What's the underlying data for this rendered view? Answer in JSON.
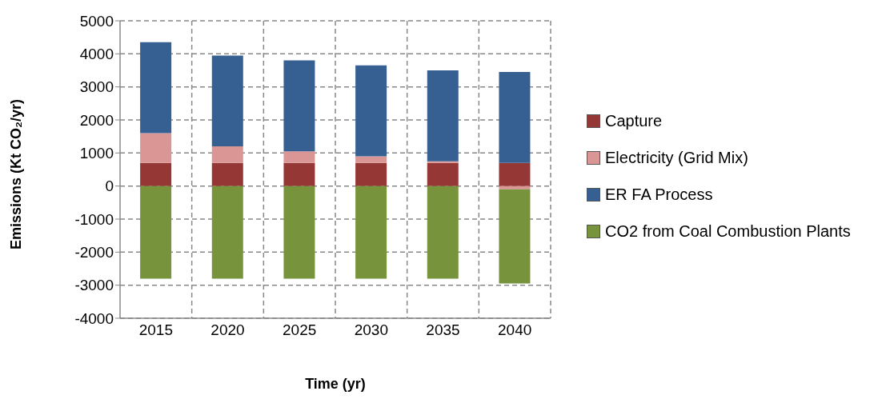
{
  "chart_data": {
    "type": "bar",
    "stacked": true,
    "xlabel": "Time (yr)",
    "ylabel": "Emissions (Kt CO₂/yr)",
    "categories": [
      "2015",
      "2020",
      "2025",
      "2030",
      "2035",
      "2040"
    ],
    "series": [
      {
        "name": "Capture",
        "color": "#953735",
        "values": [
          700,
          700,
          700,
          700,
          700,
          700
        ]
      },
      {
        "name": "Electricity (Grid Mix)",
        "color": "#d99694",
        "values": [
          900,
          500,
          350,
          200,
          50,
          -100
        ]
      },
      {
        "name": "ER FA Process",
        "color": "#376092",
        "values": [
          2750,
          2750,
          2750,
          2750,
          2750,
          2750
        ]
      },
      {
        "name": "CO2 from Coal Combustion Plants",
        "color": "#77933c",
        "values": [
          -2800,
          -2800,
          -2800,
          -2800,
          -2800,
          -2850
        ]
      }
    ],
    "ylim": [
      -4000,
      5000
    ],
    "yticks": [
      -4000,
      -3000,
      -2000,
      -1000,
      0,
      1000,
      2000,
      3000,
      4000,
      5000
    ],
    "grid": true,
    "legend": "right"
  }
}
